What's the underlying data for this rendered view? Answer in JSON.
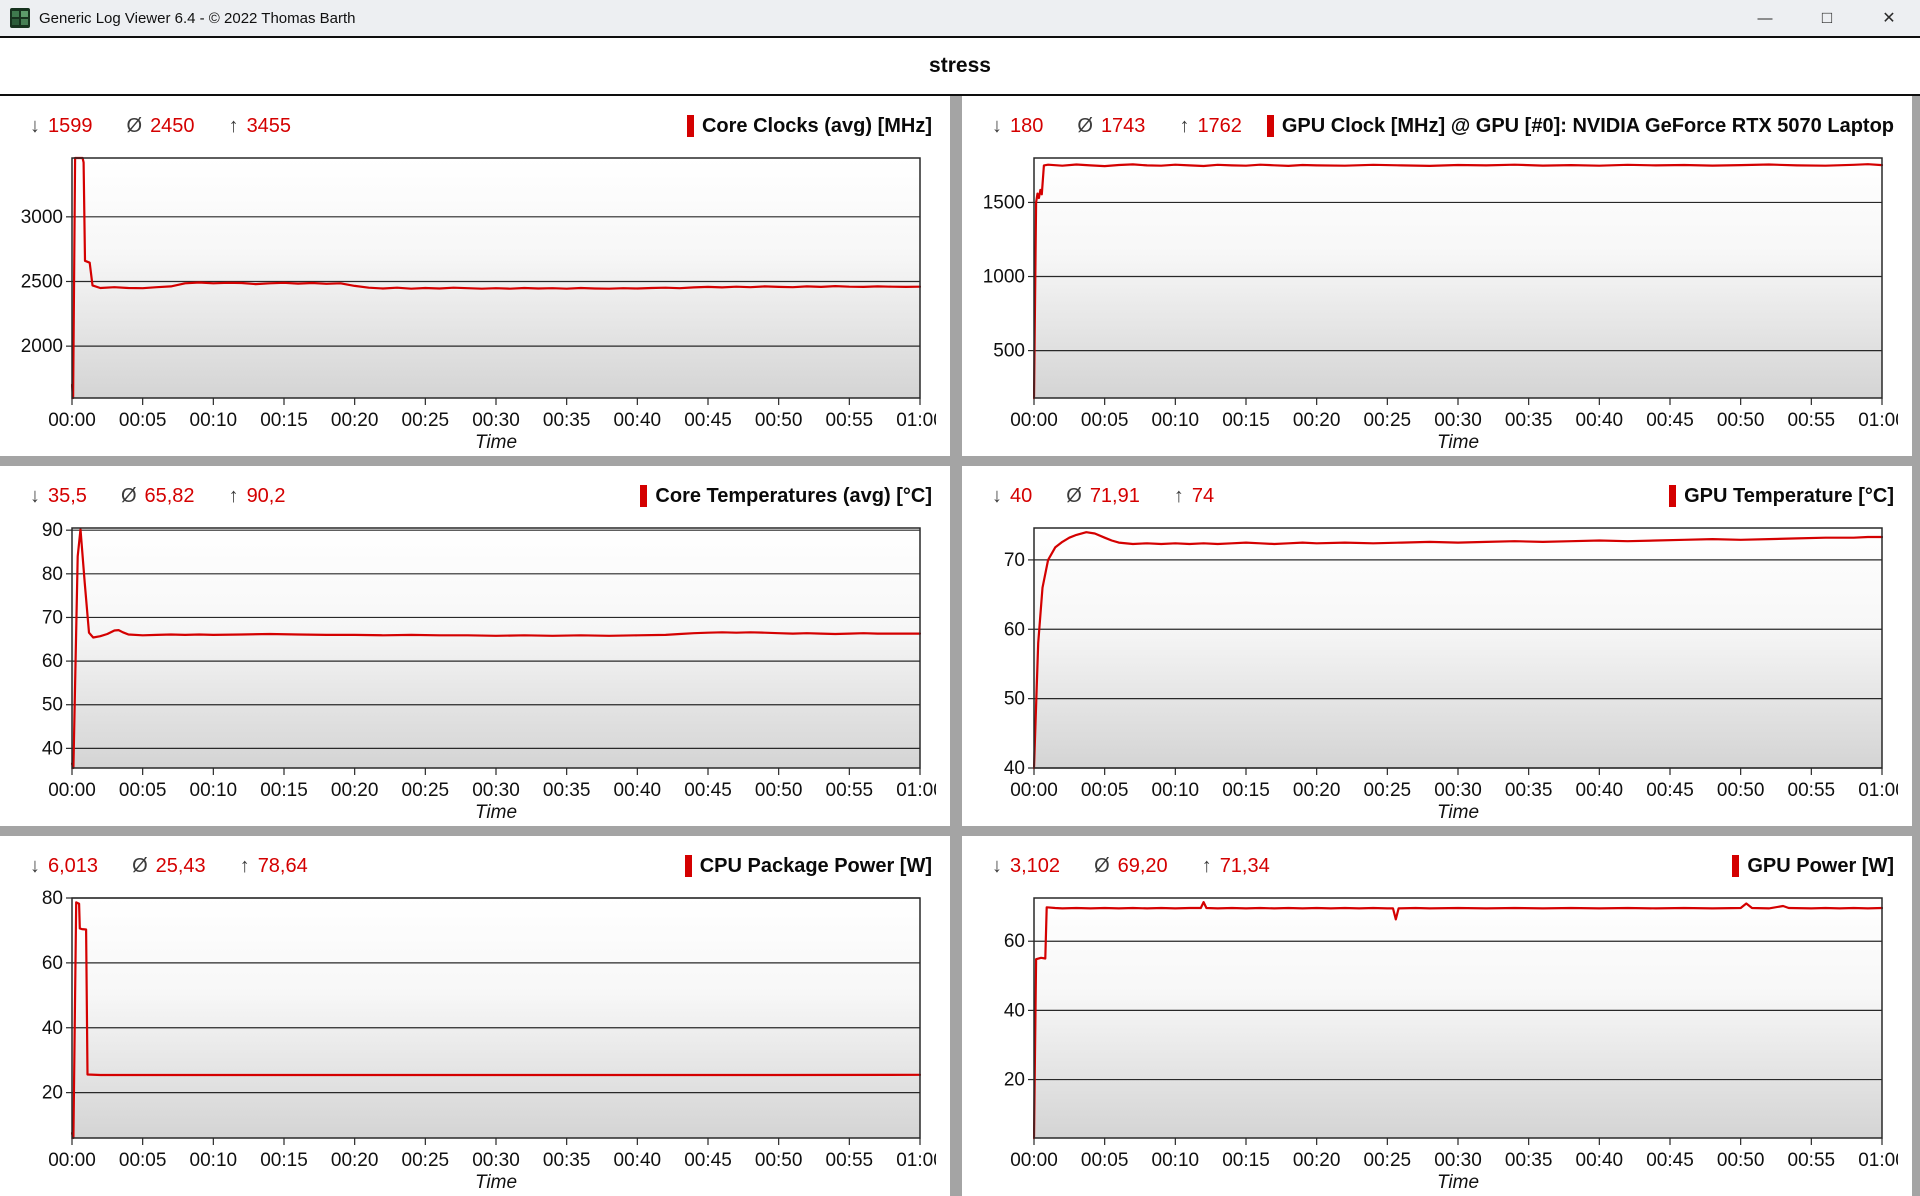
{
  "window": {
    "title": "Generic Log Viewer 6.4 - © 2022 Thomas Barth",
    "buttons": {
      "minimize": "—",
      "maximize": "□",
      "close": "✕"
    }
  },
  "header": {
    "title": "stress"
  },
  "colors": {
    "accent": "#d40000",
    "grid_line": "#282828",
    "divider": "#a4a4a4"
  },
  "axis": {
    "xlabel": "Time",
    "xticks": [
      {
        "v": 0,
        "label": "00:00"
      },
      {
        "v": 5,
        "label": "00:05"
      },
      {
        "v": 10,
        "label": "00:10"
      },
      {
        "v": 15,
        "label": "00:15"
      },
      {
        "v": 20,
        "label": "00:20"
      },
      {
        "v": 25,
        "label": "00:25"
      },
      {
        "v": 30,
        "label": "00:30"
      },
      {
        "v": 35,
        "label": "00:35"
      },
      {
        "v": 40,
        "label": "00:40"
      },
      {
        "v": 45,
        "label": "00:45"
      },
      {
        "v": 50,
        "label": "00:50"
      },
      {
        "v": 55,
        "label": "00:55"
      },
      {
        "v": 60,
        "label": "01:00"
      }
    ]
  },
  "chart_data": [
    {
      "type": "line",
      "id": "core-clocks",
      "title": "Core Clocks (avg) [MHz]",
      "stats": {
        "min": "1599",
        "avg": "2450",
        "max": "3455"
      },
      "ylim": [
        1599,
        3455
      ],
      "yticks": [
        2000,
        2500,
        3000
      ],
      "points": [
        [
          0,
          1700
        ],
        [
          0.08,
          1599
        ],
        [
          0.22,
          3455
        ],
        [
          0.75,
          3455
        ],
        [
          0.82,
          3420
        ],
        [
          0.92,
          2660
        ],
        [
          1.25,
          2645
        ],
        [
          1.45,
          2470
        ],
        [
          2,
          2450
        ],
        [
          3,
          2456
        ],
        [
          4,
          2450
        ],
        [
          5,
          2448
        ],
        [
          6,
          2456
        ],
        [
          7,
          2462
        ],
        [
          8,
          2486
        ],
        [
          9,
          2492
        ],
        [
          10,
          2486
        ],
        [
          11,
          2490
        ],
        [
          12,
          2488
        ],
        [
          13,
          2480
        ],
        [
          14,
          2486
        ],
        [
          15,
          2490
        ],
        [
          16,
          2484
        ],
        [
          17,
          2488
        ],
        [
          18,
          2482
        ],
        [
          19,
          2486
        ],
        [
          20,
          2466
        ],
        [
          21,
          2452
        ],
        [
          22,
          2446
        ],
        [
          23,
          2452
        ],
        [
          24,
          2444
        ],
        [
          25,
          2450
        ],
        [
          26,
          2446
        ],
        [
          27,
          2452
        ],
        [
          28,
          2448
        ],
        [
          29,
          2444
        ],
        [
          30,
          2448
        ],
        [
          31,
          2444
        ],
        [
          32,
          2450
        ],
        [
          33,
          2446
        ],
        [
          34,
          2448
        ],
        [
          35,
          2444
        ],
        [
          36,
          2450
        ],
        [
          37,
          2446
        ],
        [
          38,
          2444
        ],
        [
          39,
          2448
        ],
        [
          40,
          2446
        ],
        [
          41,
          2450
        ],
        [
          42,
          2452
        ],
        [
          43,
          2448
        ],
        [
          44,
          2454
        ],
        [
          45,
          2458
        ],
        [
          46,
          2454
        ],
        [
          47,
          2460
        ],
        [
          48,
          2456
        ],
        [
          49,
          2462
        ],
        [
          50,
          2458
        ],
        [
          51,
          2456
        ],
        [
          52,
          2462
        ],
        [
          53,
          2458
        ],
        [
          54,
          2464
        ],
        [
          55,
          2460
        ],
        [
          56,
          2458
        ],
        [
          57,
          2462
        ],
        [
          58,
          2460
        ],
        [
          59,
          2458
        ],
        [
          60,
          2460
        ]
      ]
    },
    {
      "type": "line",
      "id": "gpu-clock",
      "title": "GPU Clock [MHz] @ GPU [#0]: NVIDIA GeForce RTX 5070 Laptop",
      "stats": {
        "min": "180",
        "avg": "1743",
        "max": "1762"
      },
      "ylim": [
        180,
        1800
      ],
      "yticks": [
        500,
        1000,
        1500
      ],
      "points": [
        [
          0,
          180
        ],
        [
          0.15,
          1500
        ],
        [
          0.25,
          1560
        ],
        [
          0.35,
          1530
        ],
        [
          0.45,
          1585
        ],
        [
          0.55,
          1555
        ],
        [
          0.7,
          1750
        ],
        [
          1,
          1755
        ],
        [
          2,
          1748
        ],
        [
          3,
          1756
        ],
        [
          4,
          1750
        ],
        [
          5,
          1745
        ],
        [
          6,
          1753
        ],
        [
          7,
          1757
        ],
        [
          8,
          1750
        ],
        [
          9,
          1748
        ],
        [
          10,
          1755
        ],
        [
          11,
          1750
        ],
        [
          12,
          1746
        ],
        [
          13,
          1754
        ],
        [
          14,
          1750
        ],
        [
          15,
          1748
        ],
        [
          16,
          1755
        ],
        [
          17,
          1751
        ],
        [
          18,
          1747
        ],
        [
          19,
          1753
        ],
        [
          20,
          1750
        ],
        [
          22,
          1748
        ],
        [
          24,
          1754
        ],
        [
          26,
          1750
        ],
        [
          28,
          1747
        ],
        [
          30,
          1753
        ],
        [
          32,
          1750
        ],
        [
          34,
          1755
        ],
        [
          36,
          1749
        ],
        [
          38,
          1752
        ],
        [
          40,
          1748
        ],
        [
          42,
          1754
        ],
        [
          44,
          1750
        ],
        [
          46,
          1753
        ],
        [
          48,
          1749
        ],
        [
          50,
          1752
        ],
        [
          52,
          1756
        ],
        [
          54,
          1750
        ],
        [
          56,
          1748
        ],
        [
          58,
          1754
        ],
        [
          59,
          1758
        ],
        [
          60,
          1752
        ]
      ]
    },
    {
      "type": "line",
      "id": "core-temperatures",
      "title": "Core Temperatures (avg) [°C]",
      "stats": {
        "min": "35,5",
        "avg": "65,82",
        "max": "90,2"
      },
      "ylim": [
        35.5,
        90.5
      ],
      "yticks": [
        40,
        50,
        60,
        70,
        80,
        90
      ],
      "points": [
        [
          0,
          36.5
        ],
        [
          0.1,
          35.5
        ],
        [
          0.4,
          84
        ],
        [
          0.6,
          90.2
        ],
        [
          0.9,
          78
        ],
        [
          1.2,
          66.5
        ],
        [
          1.5,
          65.4
        ],
        [
          2,
          65.7
        ],
        [
          2.5,
          66.2
        ],
        [
          3,
          67
        ],
        [
          3.3,
          67.1
        ],
        [
          3.6,
          66.6
        ],
        [
          4,
          66.1
        ],
        [
          5,
          65.9
        ],
        [
          6,
          66
        ],
        [
          7,
          66.1
        ],
        [
          8,
          66
        ],
        [
          9,
          66.1
        ],
        [
          10,
          66
        ],
        [
          12,
          66.1
        ],
        [
          14,
          66.2
        ],
        [
          16,
          66.1
        ],
        [
          18,
          66
        ],
        [
          20,
          66
        ],
        [
          22,
          65.9
        ],
        [
          24,
          66
        ],
        [
          26,
          65.9
        ],
        [
          28,
          65.9
        ],
        [
          30,
          65.8
        ],
        [
          32,
          65.9
        ],
        [
          34,
          65.8
        ],
        [
          36,
          65.9
        ],
        [
          38,
          65.8
        ],
        [
          40,
          65.9
        ],
        [
          42,
          66
        ],
        [
          43,
          66.2
        ],
        [
          44,
          66.4
        ],
        [
          45,
          66.5
        ],
        [
          46,
          66.6
        ],
        [
          47,
          66.5
        ],
        [
          48,
          66.6
        ],
        [
          49,
          66.5
        ],
        [
          50,
          66.4
        ],
        [
          51,
          66.3
        ],
        [
          52,
          66.4
        ],
        [
          53,
          66.3
        ],
        [
          54,
          66.2
        ],
        [
          55,
          66.3
        ],
        [
          56,
          66.4
        ],
        [
          57,
          66.3
        ],
        [
          58,
          66.3
        ],
        [
          59,
          66.3
        ],
        [
          60,
          66.3
        ]
      ]
    },
    {
      "type": "line",
      "id": "gpu-temperature",
      "title": "GPU Temperature [°C]",
      "stats": {
        "min": "40",
        "avg": "71,91",
        "max": "74"
      },
      "ylim": [
        40,
        74.6
      ],
      "yticks": [
        40,
        50,
        60,
        70
      ],
      "points": [
        [
          0,
          40
        ],
        [
          0.3,
          58
        ],
        [
          0.6,
          66
        ],
        [
          1,
          70
        ],
        [
          1.5,
          71.8
        ],
        [
          2,
          72.6
        ],
        [
          2.5,
          73.2
        ],
        [
          3,
          73.6
        ],
        [
          3.7,
          74
        ],
        [
          4.3,
          73.8
        ],
        [
          5,
          73.2
        ],
        [
          5.5,
          72.8
        ],
        [
          6,
          72.5
        ],
        [
          7,
          72.3
        ],
        [
          8,
          72.4
        ],
        [
          9,
          72.3
        ],
        [
          10,
          72.4
        ],
        [
          11,
          72.3
        ],
        [
          12,
          72.4
        ],
        [
          13,
          72.3
        ],
        [
          14,
          72.4
        ],
        [
          15,
          72.5
        ],
        [
          16,
          72.4
        ],
        [
          17,
          72.3
        ],
        [
          18,
          72.4
        ],
        [
          19,
          72.5
        ],
        [
          20,
          72.4
        ],
        [
          22,
          72.5
        ],
        [
          24,
          72.4
        ],
        [
          26,
          72.5
        ],
        [
          28,
          72.6
        ],
        [
          30,
          72.5
        ],
        [
          32,
          72.6
        ],
        [
          34,
          72.7
        ],
        [
          36,
          72.6
        ],
        [
          38,
          72.7
        ],
        [
          40,
          72.8
        ],
        [
          42,
          72.7
        ],
        [
          44,
          72.8
        ],
        [
          46,
          72.9
        ],
        [
          48,
          73
        ],
        [
          50,
          72.9
        ],
        [
          52,
          73
        ],
        [
          54,
          73.1
        ],
        [
          56,
          73.2
        ],
        [
          58,
          73.2
        ],
        [
          59,
          73.3
        ],
        [
          60,
          73.3
        ]
      ]
    },
    {
      "type": "line",
      "id": "cpu-package-power",
      "title": "CPU Package Power [W]",
      "stats": {
        "min": "6,013",
        "avg": "25,43",
        "max": "78,64"
      },
      "ylim": [
        6.013,
        80
      ],
      "yticks": [
        20,
        40,
        60,
        80
      ],
      "points": [
        [
          0,
          7.5
        ],
        [
          0.1,
          6.013
        ],
        [
          0.3,
          78.64
        ],
        [
          0.5,
          78.2
        ],
        [
          0.55,
          70.6
        ],
        [
          0.7,
          70.4
        ],
        [
          1,
          70.3
        ],
        [
          1.1,
          25.6
        ],
        [
          2,
          25.43
        ],
        [
          10,
          25.43
        ],
        [
          20,
          25.45
        ],
        [
          30,
          25.43
        ],
        [
          40,
          25.43
        ],
        [
          50,
          25.43
        ],
        [
          60,
          25.5
        ]
      ]
    },
    {
      "type": "line",
      "id": "gpu-power",
      "title": "GPU Power [W]",
      "stats": {
        "min": "3,102",
        "avg": "69,20",
        "max": "71,34"
      },
      "ylim": [
        3.102,
        72.5
      ],
      "yticks": [
        20,
        40,
        60
      ],
      "points": [
        [
          0,
          3.102
        ],
        [
          0.15,
          54.8
        ],
        [
          0.5,
          55.2
        ],
        [
          0.8,
          55
        ],
        [
          0.9,
          69.8
        ],
        [
          1.5,
          69.6
        ],
        [
          2,
          69.5
        ],
        [
          3,
          69.6
        ],
        [
          4,
          69.5
        ],
        [
          5,
          69.6
        ],
        [
          6,
          69.5
        ],
        [
          7,
          69.6
        ],
        [
          8,
          69.5
        ],
        [
          9,
          69.6
        ],
        [
          10,
          69.5
        ],
        [
          11,
          69.6
        ],
        [
          11.8,
          69.6
        ],
        [
          12,
          71.3
        ],
        [
          12.2,
          69.6
        ],
        [
          13,
          69.5
        ],
        [
          14,
          69.6
        ],
        [
          15,
          69.5
        ],
        [
          16,
          69.6
        ],
        [
          17,
          69.5
        ],
        [
          18,
          69.6
        ],
        [
          19,
          69.5
        ],
        [
          20,
          69.6
        ],
        [
          21,
          69.5
        ],
        [
          22,
          69.6
        ],
        [
          23,
          69.5
        ],
        [
          24,
          69.6
        ],
        [
          25,
          69.5
        ],
        [
          25.4,
          69.5
        ],
        [
          25.6,
          66.3
        ],
        [
          25.8,
          69.5
        ],
        [
          27,
          69.6
        ],
        [
          28,
          69.5
        ],
        [
          30,
          69.6
        ],
        [
          32,
          69.5
        ],
        [
          34,
          69.6
        ],
        [
          36,
          69.5
        ],
        [
          38,
          69.6
        ],
        [
          40,
          69.5
        ],
        [
          42,
          69.6
        ],
        [
          44,
          69.5
        ],
        [
          46,
          69.6
        ],
        [
          48,
          69.5
        ],
        [
          50,
          69.6
        ],
        [
          50.4,
          70.9
        ],
        [
          50.8,
          69.6
        ],
        [
          52,
          69.5
        ],
        [
          53,
          70.2
        ],
        [
          53.4,
          69.6
        ],
        [
          55,
          69.5
        ],
        [
          56,
          69.6
        ],
        [
          57,
          69.5
        ],
        [
          58,
          69.6
        ],
        [
          59,
          69.5
        ],
        [
          60,
          69.6
        ]
      ]
    }
  ],
  "stat_symbols": {
    "min": "↓",
    "avg": "Ø",
    "max": "↑"
  }
}
